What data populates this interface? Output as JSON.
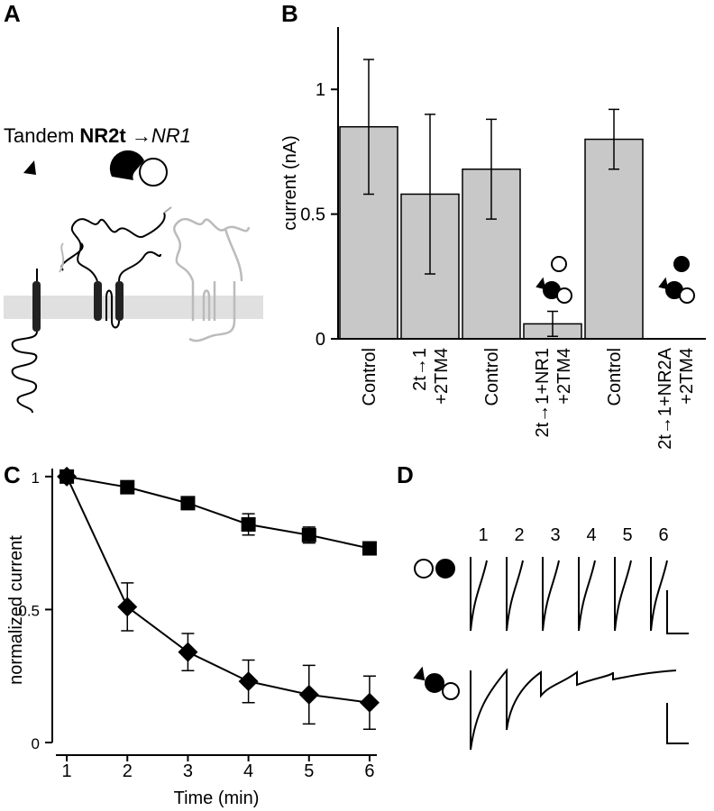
{
  "panel_labels": [
    "A",
    "B",
    "C",
    "D"
  ],
  "panel_a": {
    "title_parts": [
      "Tandem ",
      "NR2t",
      " →",
      "NR1"
    ]
  },
  "panel_d": {
    "trace_labels": [
      "1",
      "2",
      "3",
      "4",
      "5",
      "6"
    ]
  },
  "chart_data": [
    {
      "type": "bar",
      "ylabel": "current (nA)",
      "categories": [
        [
          "Control"
        ],
        [
          "2t→1",
          "+2TM4"
        ],
        [
          "Control"
        ],
        [
          "2t→1+NR1",
          "+2TM4"
        ],
        [
          "Control"
        ],
        [
          "2t→1+NR2A",
          "+2TM4"
        ]
      ],
      "values": [
        0.85,
        0.58,
        0.68,
        0.06,
        0.8,
        0
      ],
      "errors": [
        0.27,
        0.32,
        0.2,
        0.05,
        0.12,
        0
      ],
      "color": "#c8c8c8",
      "ylim": [
        0,
        1.25
      ],
      "yticks": [
        0,
        0.5,
        1
      ]
    },
    {
      "type": "line",
      "xlabel": "Time (min)",
      "ylabel": "normalized current",
      "x": [
        1,
        2,
        3,
        4,
        5,
        6
      ],
      "series": [
        {
          "marker": "square",
          "color": "#000000",
          "values": [
            1,
            0.96,
            0.9,
            0.82,
            0.78,
            0.73
          ],
          "errors": [
            0,
            0.01,
            0.01,
            0.04,
            0.03,
            0.02
          ]
        },
        {
          "marker": "diamond",
          "color": "#000000",
          "values": [
            1,
            0.51,
            0.34,
            0.23,
            0.18,
            0.15
          ],
          "errors": [
            0,
            0.09,
            0.07,
            0.08,
            0.11,
            0.1
          ]
        }
      ],
      "xlim": [
        0.82,
        6.12
      ],
      "xticks": [
        1,
        2,
        3,
        4,
        5,
        6
      ],
      "ylim": [
        0,
        1.03
      ],
      "yticks": [
        0,
        0.5,
        1
      ]
    }
  ]
}
